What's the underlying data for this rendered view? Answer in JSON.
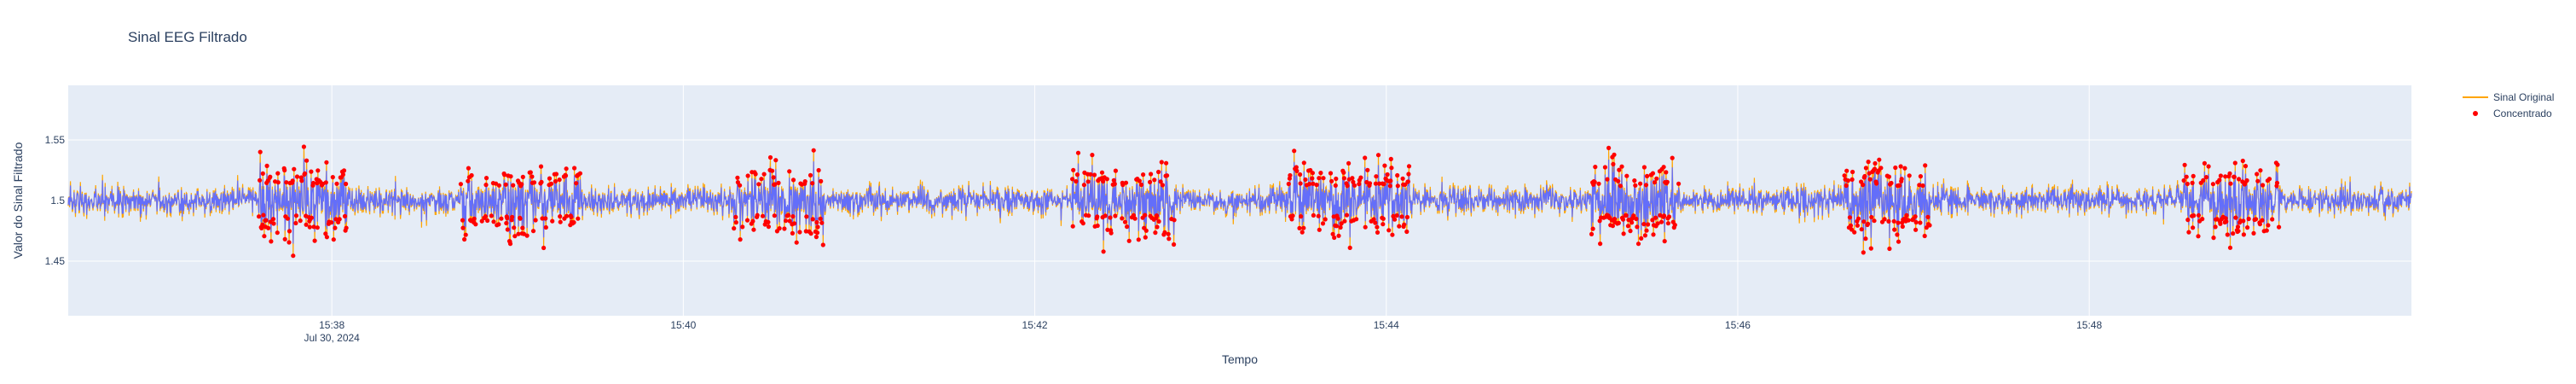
{
  "chart_data": {
    "type": "line",
    "title": "Sinal EEG Filtrado",
    "xlabel": "Tempo",
    "ylabel": "Valor do Sinal Filtrado",
    "x_ticks": [
      {
        "t": 60,
        "label": "15:38",
        "sublabel": "Jul 30, 2024"
      },
      {
        "t": 180,
        "label": "15:40",
        "sublabel": ""
      },
      {
        "t": 300,
        "label": "15:42",
        "sublabel": ""
      },
      {
        "t": 420,
        "label": "15:44",
        "sublabel": ""
      },
      {
        "t": 540,
        "label": "15:46",
        "sublabel": ""
      },
      {
        "t": 660,
        "label": "15:48",
        "sublabel": ""
      }
    ],
    "x_range_seconds_after_15_37": [
      -30,
      770
    ],
    "y_ticks": [
      1.45,
      1.5,
      1.55
    ],
    "y_tick_labels": [
      "1.45",
      "1.5",
      "1.55"
    ],
    "ylim": [
      1.405,
      1.595
    ],
    "grid": true,
    "legend_position": "top-right",
    "series": [
      {
        "name": "Sinal Original",
        "mode": "lines",
        "color": "#FFA500",
        "baseline": 1.5,
        "typical_band": [
          1.47,
          1.53
        ]
      },
      {
        "name": "Concentrado",
        "mode": "markers",
        "color": "#FF0000",
        "overlay_color": "#636EFA",
        "segments_x_labels": [
          [
            "15:37:35",
            "15:38:05"
          ],
          [
            "15:38:44",
            "15:39:25"
          ],
          [
            "15:40:16",
            "15:40:48"
          ],
          [
            "15:42:12",
            "15:42:48"
          ],
          [
            "15:43:26",
            "15:44:08"
          ],
          [
            "15:45:10",
            "15:45:40"
          ],
          [
            "15:46:36",
            "15:47:06"
          ],
          [
            "15:48:32",
            "15:49:05"
          ]
        ]
      }
    ],
    "colors": {
      "plot_bg": "#E5ECF6",
      "grid": "#FFFFFF",
      "text": "#2A3F5F"
    }
  }
}
